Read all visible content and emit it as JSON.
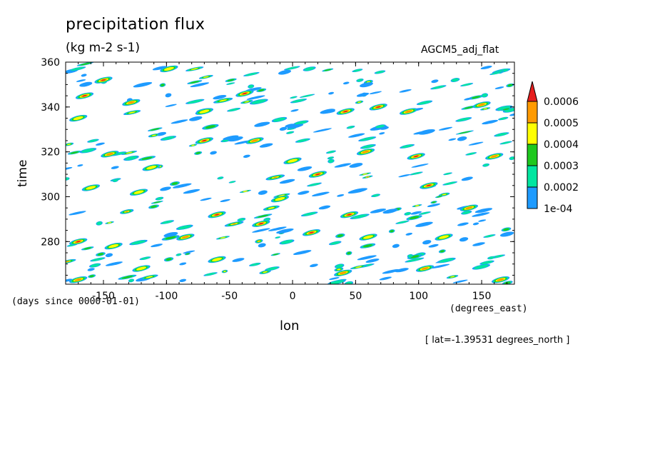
{
  "chart_data": {
    "type": "heatmap",
    "title": "precipitation flux",
    "units": "(kg m-2 s-1)",
    "model_label": "AGCM5_adj_flat",
    "xlabel": "lon",
    "x_units": "(degrees_east)",
    "ylabel": "time",
    "y_units": "(days since 0000-01-01)",
    "annotation": "[ lat=-1.39531 degrees_north ]",
    "xlim": [
      -180,
      176
    ],
    "ylim": [
      261,
      360
    ],
    "xticks": [
      -150,
      -100,
      -50,
      0,
      50,
      100,
      150
    ],
    "xtick_labels": [
      "-150",
      "-100",
      "-50",
      "0",
      "50",
      "100",
      "150"
    ],
    "yticks": [
      280,
      300,
      320,
      340,
      360
    ],
    "ytick_labels": [
      "280",
      "300",
      "320",
      "340",
      "360"
    ],
    "legend": {
      "placement": "right",
      "levels": [
        0.0001,
        0.0002,
        0.0003,
        0.0004,
        0.0005,
        0.0006
      ],
      "level_labels": [
        "1e-04",
        "0.0002",
        "0.0003",
        "0.0004",
        "0.0005",
        "0.0006"
      ],
      "colors": [
        "#1e9bff",
        "#00e6a0",
        "#1ec81e",
        "#ffff00",
        "#ff9a00",
        "#e61e1e"
      ]
    },
    "features": [
      {
        "lon": -165,
        "time": 345,
        "level": 5
      },
      {
        "lon": -150,
        "time": 352,
        "level": 5
      },
      {
        "lon": -128,
        "time": 342,
        "level": 4
      },
      {
        "lon": -98,
        "time": 357,
        "level": 3
      },
      {
        "lon": -70,
        "time": 338,
        "level": 3
      },
      {
        "lon": -38,
        "time": 346,
        "level": 5
      },
      {
        "lon": 42,
        "time": 338,
        "level": 5
      },
      {
        "lon": 68,
        "time": 340,
        "level": 5
      },
      {
        "lon": 92,
        "time": 338,
        "level": 4
      },
      {
        "lon": 150,
        "time": 341,
        "level": 4
      },
      {
        "lon": -170,
        "time": 335,
        "level": 3
      },
      {
        "lon": -145,
        "time": 319,
        "level": 4
      },
      {
        "lon": -112,
        "time": 313,
        "level": 3
      },
      {
        "lon": -70,
        "time": 325,
        "level": 5
      },
      {
        "lon": -30,
        "time": 325,
        "level": 4
      },
      {
        "lon": 0,
        "time": 316,
        "level": 3
      },
      {
        "lon": 58,
        "time": 320,
        "level": 4
      },
      {
        "lon": 98,
        "time": 318,
        "level": 5
      },
      {
        "lon": 160,
        "time": 318,
        "level": 4
      },
      {
        "lon": -160,
        "time": 304,
        "level": 3
      },
      {
        "lon": -122,
        "time": 302,
        "level": 3
      },
      {
        "lon": -60,
        "time": 292,
        "level": 5
      },
      {
        "lon": -10,
        "time": 299,
        "level": 3
      },
      {
        "lon": 20,
        "time": 310,
        "level": 5
      },
      {
        "lon": 45,
        "time": 292,
        "level": 5
      },
      {
        "lon": 108,
        "time": 305,
        "level": 5
      },
      {
        "lon": 140,
        "time": 295,
        "level": 4
      },
      {
        "lon": -170,
        "time": 280,
        "level": 5
      },
      {
        "lon": -142,
        "time": 278,
        "level": 3
      },
      {
        "lon": -85,
        "time": 282,
        "level": 4
      },
      {
        "lon": -25,
        "time": 288,
        "level": 5
      },
      {
        "lon": 15,
        "time": 284,
        "level": 5
      },
      {
        "lon": 60,
        "time": 282,
        "level": 3
      },
      {
        "lon": 120,
        "time": 282,
        "level": 3
      },
      {
        "lon": -170,
        "time": 263,
        "level": 4
      },
      {
        "lon": -120,
        "time": 268,
        "level": 3
      },
      {
        "lon": -60,
        "time": 272,
        "level": 3
      },
      {
        "lon": 40,
        "time": 266,
        "level": 4
      },
      {
        "lon": 105,
        "time": 268,
        "level": 4
      },
      {
        "lon": 165,
        "time": 263,
        "level": 4
      }
    ]
  }
}
